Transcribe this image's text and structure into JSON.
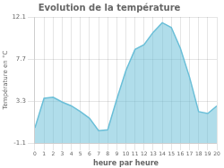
{
  "chart_data": {
    "type": "area",
    "title": "Evolution de la température",
    "xlabel": "heure par heure",
    "ylabel": "Température en °C",
    "x": [
      0,
      1,
      2,
      3,
      4,
      5,
      6,
      7,
      8,
      9,
      10,
      11,
      12,
      13,
      14,
      15,
      16,
      17,
      18,
      19,
      20
    ],
    "values": [
      0.5,
      3.6,
      3.7,
      3.2,
      2.8,
      2.2,
      1.5,
      0.2,
      0.3,
      3.5,
      6.5,
      8.7,
      9.2,
      10.5,
      11.5,
      11.0,
      8.8,
      5.8,
      2.2,
      2.0,
      2.8
    ],
    "color": "#6bbfd8",
    "xlim": [
      0,
      20
    ],
    "xticks": [
      0,
      1,
      2,
      3,
      4,
      5,
      6,
      7,
      8,
      9,
      10,
      11,
      12,
      13,
      14,
      15,
      16,
      17,
      18,
      19,
      20
    ],
    "ylim": [
      -1.1,
      12.1
    ],
    "yticks": [
      -1.1,
      3.3,
      7.7,
      12.1
    ],
    "grid": true
  }
}
